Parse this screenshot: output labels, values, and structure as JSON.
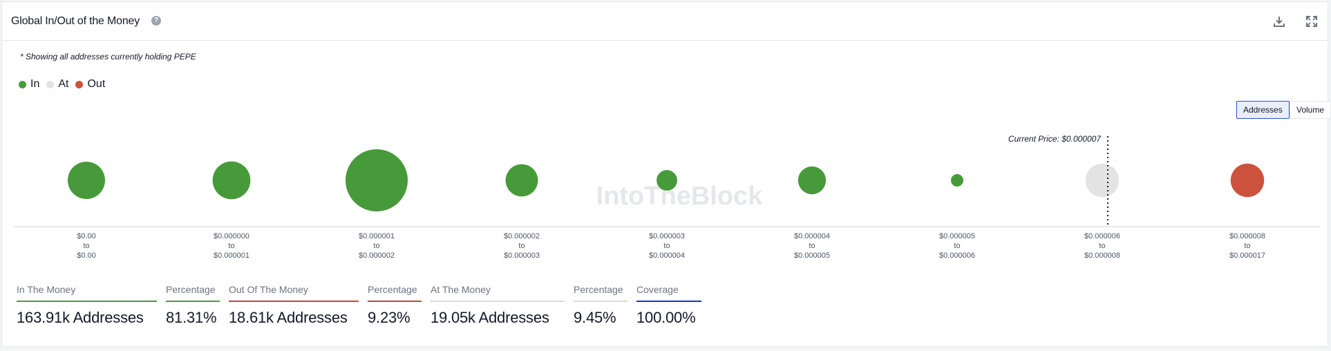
{
  "header": {
    "title": "Global In/Out of the Money",
    "help_glyph": "?",
    "icons": [
      "download-icon",
      "fullscreen-icon"
    ]
  },
  "note": "* Showing all addresses currently holding PEPE",
  "legend": [
    {
      "label": "In",
      "color": "#479a39"
    },
    {
      "label": "At",
      "color": "#e3e3e3"
    },
    {
      "label": "Out",
      "color": "#cc523d"
    }
  ],
  "toggles": {
    "addresses": "Addresses",
    "volume": "Volume",
    "active": "addresses"
  },
  "chart_data": {
    "type": "bubble",
    "current_price_label": "Current Price: $0.000007",
    "current_price_bucket_index": 7,
    "bubble_size_measure": "Addresses",
    "buckets": [
      {
        "from": "$0.00",
        "to": "$0.00",
        "status": "in",
        "relative_size": 0.36
      },
      {
        "from": "$0.000000",
        "to": "$0.000001",
        "status": "in",
        "relative_size": 0.37
      },
      {
        "from": "$0.000001",
        "to": "$0.000002",
        "status": "in",
        "relative_size": 1.0
      },
      {
        "from": "$0.000002",
        "to": "$0.000003",
        "status": "in",
        "relative_size": 0.27
      },
      {
        "from": "$0.000003",
        "to": "$0.000004",
        "status": "in",
        "relative_size": 0.11
      },
      {
        "from": "$0.000004",
        "to": "$0.000005",
        "status": "in",
        "relative_size": 0.2
      },
      {
        "from": "$0.000005",
        "to": "$0.000006",
        "status": "in",
        "relative_size": 0.04
      },
      {
        "from": "$0.000006",
        "to": "$0.000008",
        "status": "at",
        "relative_size": 0.29
      },
      {
        "from": "$0.000008",
        "to": "$0.000017",
        "status": "out",
        "relative_size": 0.29
      }
    ],
    "range_joiner": "to",
    "watermark": "IntoTheBlock",
    "status_colors": {
      "in": "#479a39",
      "at": "#e3e3e3",
      "out": "#cc523d"
    }
  },
  "stats": [
    {
      "label": "In The Money",
      "value": "163.91k Addresses",
      "color": "#479a39"
    },
    {
      "label": "Percentage",
      "value": "81.31%",
      "color": "#479a39"
    },
    {
      "label": "Out Of The Money",
      "value": "18.61k Addresses",
      "color": "#c2462f"
    },
    {
      "label": "Percentage",
      "value": "9.23%",
      "color": "#c2462f"
    },
    {
      "label": "At The Money",
      "value": "19.05k Addresses",
      "color": "#d9d9d9"
    },
    {
      "label": "Percentage",
      "value": "9.45%",
      "color": "#d9d9d9"
    },
    {
      "label": "Coverage",
      "value": "100.00%",
      "color": "#1d2fc7"
    }
  ]
}
